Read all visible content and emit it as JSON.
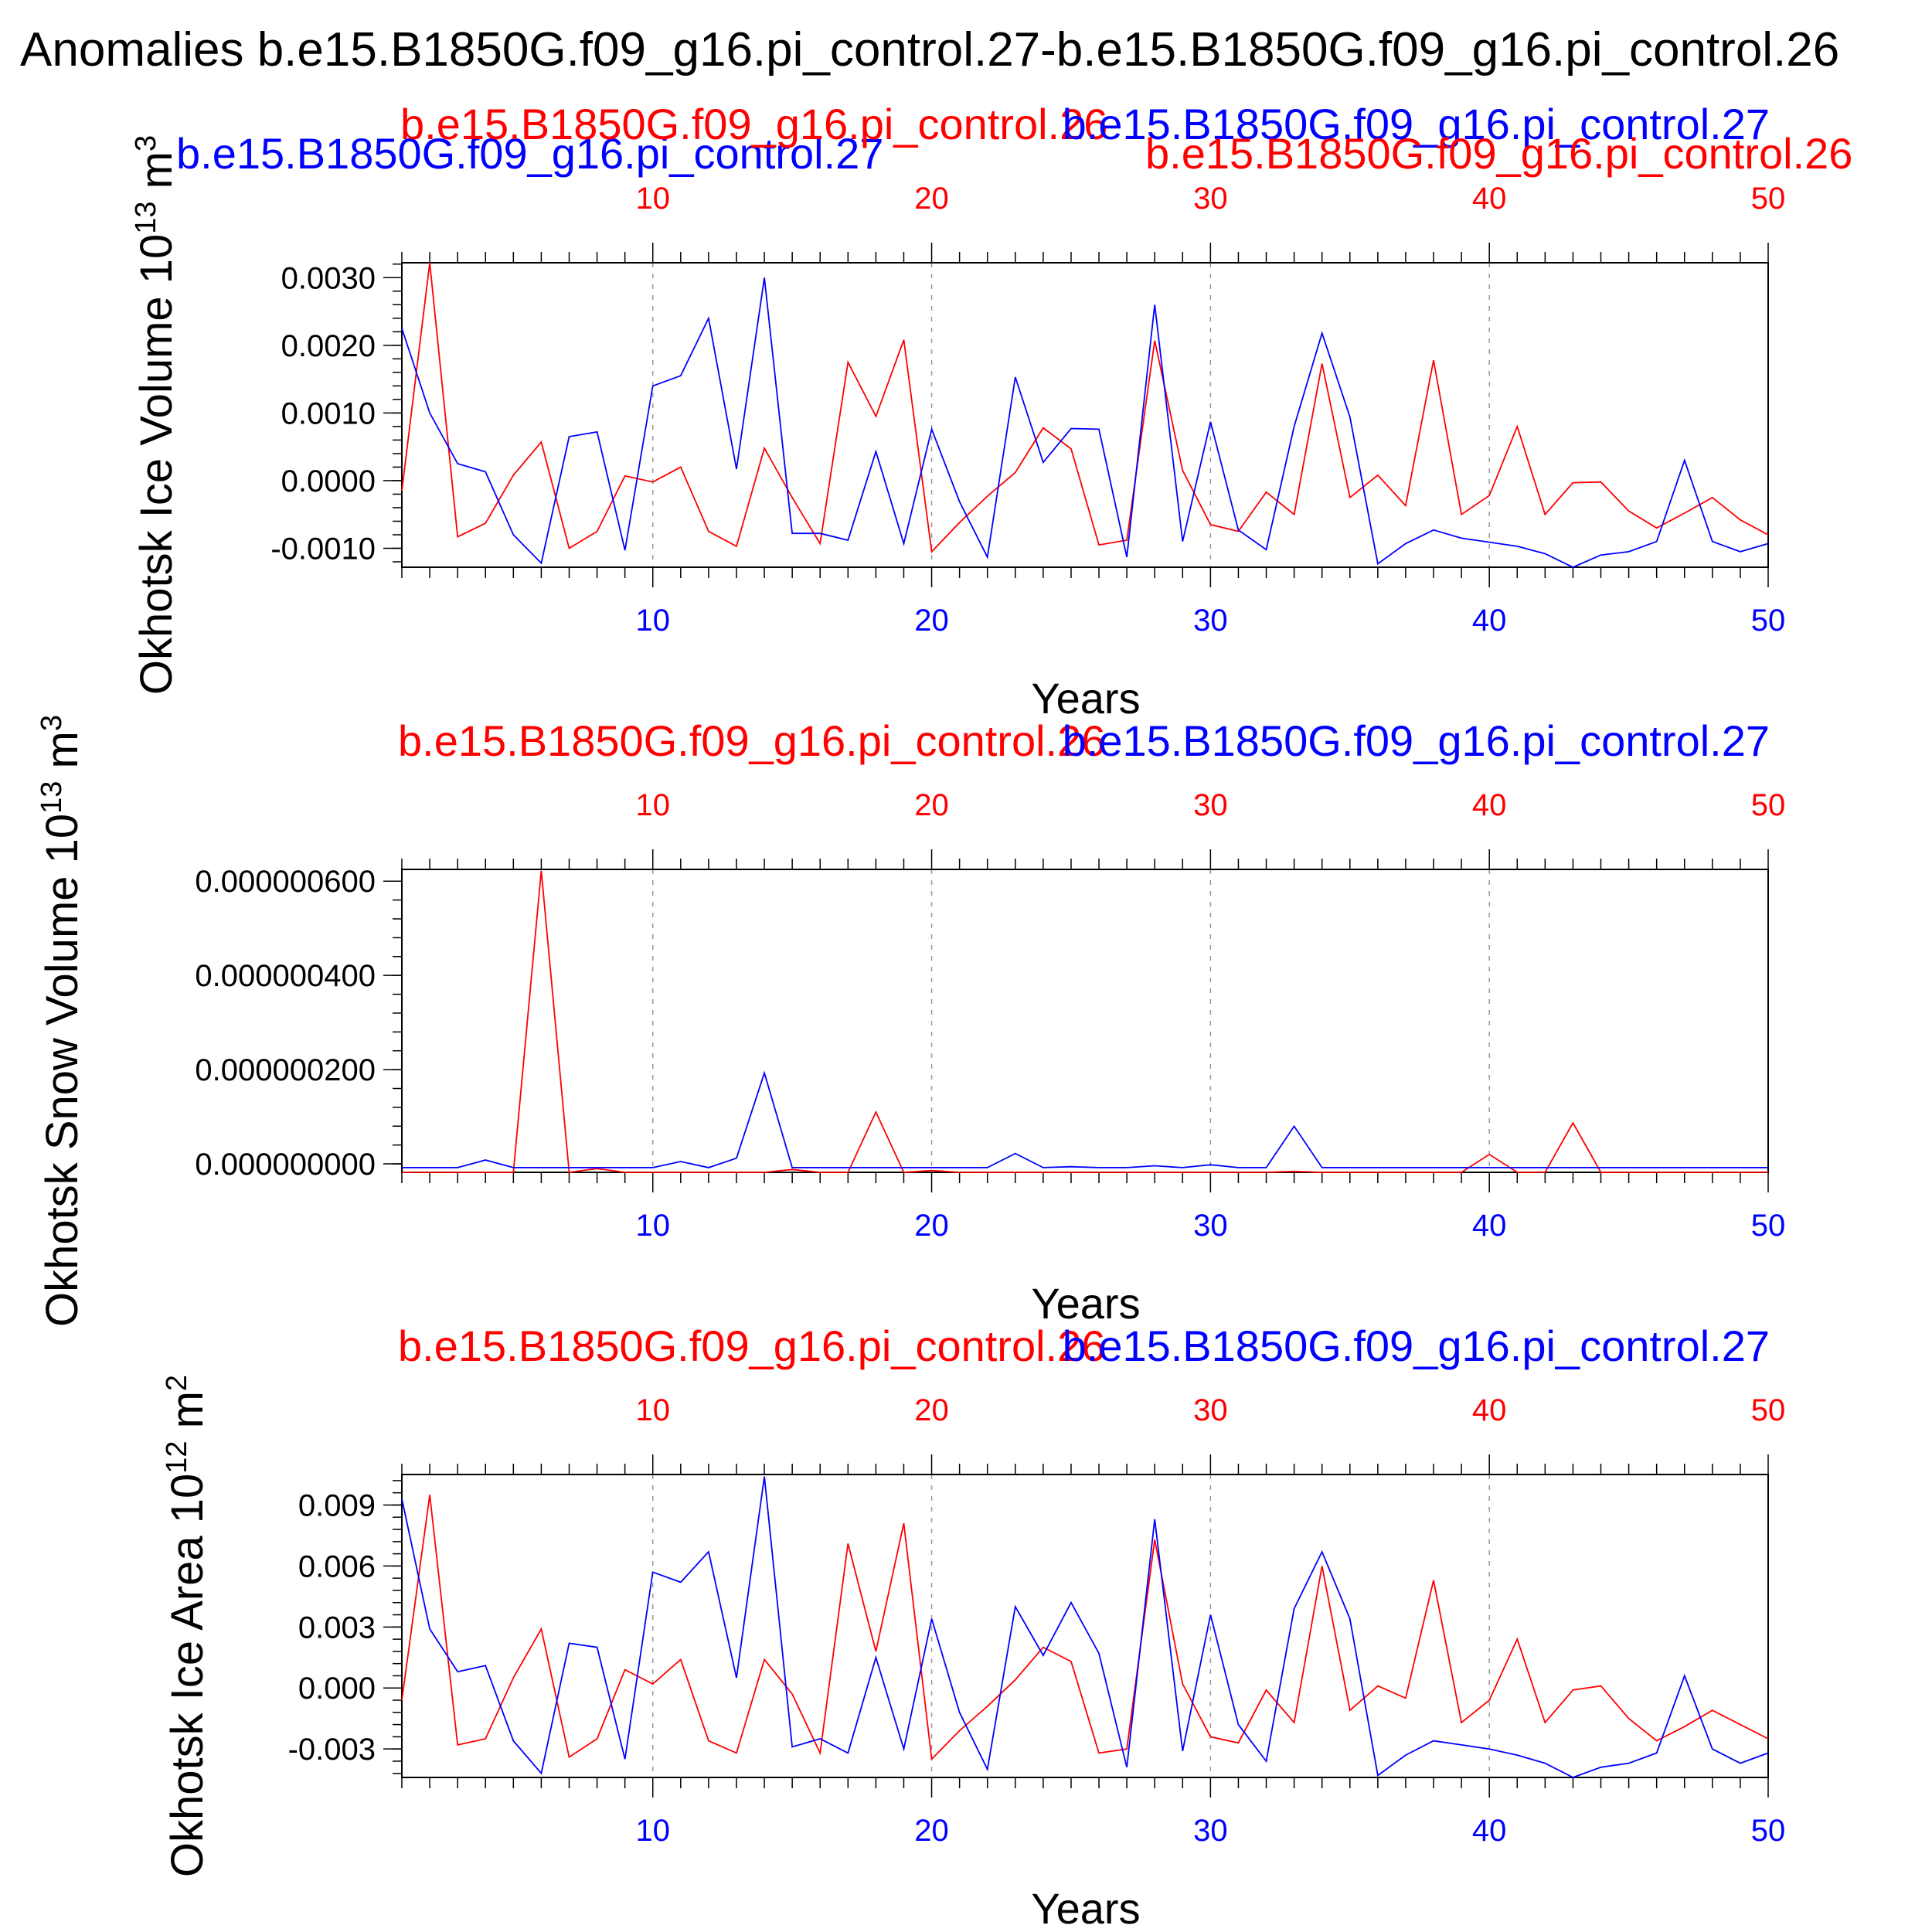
{
  "figure": {
    "title": "Anomalies b.e15.B1850G.f09_g16.pi_control.27-b.e15.B1850G.f09_g16.pi_control.26",
    "colors": {
      "blue": "#0000ff",
      "red": "#ff0000",
      "black": "#000000",
      "grid": "#999999"
    }
  },
  "chart_data": [
    {
      "type": "line",
      "ylabel": "Okhotsk Ice Volume 10",
      "ylabel_exp": "13",
      "ylabel_unit": " m",
      "ylabel_unit_exp": "3",
      "xlabel": "Years",
      "xlim": [
        1,
        50
      ],
      "ylim": [
        -0.00128,
        0.00322
      ],
      "yticks": [
        -0.001,
        0.0,
        0.001,
        0.002,
        0.003
      ],
      "ytick_labels": [
        "-0.0010",
        "0.0000",
        "0.0010",
        "0.0020",
        "0.0030"
      ],
      "xticks": [
        10,
        20,
        30,
        40,
        50
      ],
      "xtick_labels": [
        "10",
        "20",
        "30",
        "40",
        "50"
      ],
      "grid_x": true,
      "series": [
        {
          "name": "b.e15.B1850G.f09_g16.pi_control.27",
          "color": "blue",
          "x": [
            1,
            2,
            3,
            4,
            5,
            6,
            7,
            8,
            9,
            10,
            11,
            12,
            13,
            14,
            15,
            16,
            17,
            18,
            19,
            20,
            21,
            22,
            23,
            24,
            25,
            26,
            27,
            28,
            29,
            30,
            31,
            32,
            33,
            34,
            35,
            36,
            37,
            38,
            39,
            40,
            41,
            42,
            43,
            44,
            45,
            46,
            47,
            48,
            49,
            50
          ],
          "values": [
            0.00225,
            0.001,
            0.00025,
            0.00013,
            -0.0008,
            -0.00122,
            0.00065,
            0.00072,
            -0.00103,
            0.0014,
            0.00155,
            0.0024,
            0.00017,
            0.003,
            -0.00078,
            -0.00078,
            -0.00088,
            0.00043,
            -0.00093,
            0.00076,
            -0.00031,
            -0.00113,
            0.00153,
            0.00027,
            0.00077,
            0.00076,
            -0.00113,
            0.0026,
            -0.0009,
            0.00087,
            -0.00073,
            -0.00102,
            0.0008,
            0.00218,
            0.00094,
            -0.00123,
            -0.00093,
            -0.00073,
            -0.00085,
            -0.00091,
            -0.00097,
            -0.00108,
            -0.00128,
            -0.0011,
            -0.00105,
            -0.0009,
            0.0003,
            -0.0009,
            -0.00105,
            -0.00093
          ]
        },
        {
          "name": "b.e15.B1850G.f09_g16.pi_control.26",
          "color": "red",
          "x": [
            1,
            2,
            3,
            4,
            5,
            6,
            7,
            8,
            9,
            10,
            11,
            12,
            13,
            14,
            15,
            16,
            17,
            18,
            19,
            20,
            21,
            22,
            23,
            24,
            25,
            26,
            27,
            28,
            29,
            30,
            31,
            32,
            33,
            34,
            35,
            36,
            37,
            38,
            39,
            40,
            41,
            42,
            43,
            44,
            45,
            46,
            47,
            48,
            49,
            50
          ],
          "values": [
            -0.00015,
            0.00322,
            -0.00083,
            -0.00063,
            8e-05,
            0.00057,
            -0.001,
            -0.00075,
            7e-05,
            -2e-05,
            0.0002,
            -0.00075,
            -0.00097,
            0.00048,
            -0.00025,
            -0.00093,
            0.00175,
            0.00095,
            0.00208,
            -0.00105,
            -0.00062,
            -0.00023,
            0.00012,
            0.00078,
            0.00047,
            -0.00095,
            -0.00088,
            0.00207,
            0.00015,
            -0.00065,
            -0.00075,
            -0.00017,
            -0.0005,
            0.00173,
            -0.00025,
            8e-05,
            -0.00037,
            0.00178,
            -0.0005,
            -0.00022,
            0.0008,
            -0.0005,
            -3e-05,
            -2e-05,
            -0.00045,
            -0.0007,
            -0.00048,
            -0.00025,
            -0.00058,
            -0.0008
          ]
        }
      ]
    },
    {
      "type": "line",
      "ylabel": "Okhotsk Snow Volume 10",
      "ylabel_exp": "13",
      "ylabel_unit": " m",
      "ylabel_unit_exp": "3",
      "xlabel": "Years",
      "xlim": [
        1,
        50
      ],
      "ylim": [
        -1.8e-08,
        6.25e-07
      ],
      "yticks": [
        0.0,
        2e-07,
        4e-07,
        6e-07
      ],
      "ytick_labels": [
        "0.000000000",
        "0.000000200",
        "0.000000400",
        "0.000000600"
      ],
      "xticks": [
        10,
        20,
        30,
        40,
        50
      ],
      "xtick_labels": [
        "10",
        "20",
        "30",
        "40",
        "50"
      ],
      "grid_x": true,
      "series": [
        {
          "name": "b.e15.B1850G.f09_g16.pi_control.27",
          "color": "blue",
          "x": [
            1,
            2,
            3,
            4,
            5,
            6,
            7,
            8,
            9,
            10,
            11,
            12,
            13,
            14,
            15,
            16,
            17,
            18,
            19,
            20,
            21,
            22,
            23,
            24,
            25,
            26,
            27,
            28,
            29,
            30,
            31,
            32,
            33,
            34,
            35,
            36,
            37,
            38,
            39,
            40,
            41,
            42,
            43,
            44,
            45,
            46,
            47,
            48,
            49,
            50
          ],
          "values": [
            -8e-09,
            -8e-09,
            -8e-09,
            8e-09,
            -8e-09,
            -8e-09,
            -8e-09,
            -8e-09,
            -8e-09,
            -8e-09,
            5e-09,
            -8e-09,
            1.2e-08,
            1.93e-07,
            -8e-09,
            -8e-09,
            -8e-09,
            -8e-09,
            -8e-09,
            -8e-09,
            -8e-09,
            -8e-09,
            2.2e-08,
            -8e-09,
            -6e-09,
            -8e-09,
            -8e-09,
            -4e-09,
            -8e-09,
            -2e-09,
            -8e-09,
            -8e-09,
            8e-08,
            -8e-09,
            -8e-09,
            -8e-09,
            -8e-09,
            -8e-09,
            -8e-09,
            -8e-09,
            -8e-09,
            -8e-09,
            -8e-09,
            -8e-09,
            -8e-09,
            -8e-09,
            -8e-09,
            -8e-09,
            -8e-09,
            -8e-09
          ]
        },
        {
          "name": "b.e15.B1850G.f09_g16.pi_control.26",
          "color": "red",
          "x": [
            1,
            2,
            3,
            4,
            5,
            6,
            7,
            8,
            9,
            10,
            11,
            12,
            13,
            14,
            15,
            16,
            17,
            18,
            19,
            20,
            21,
            22,
            23,
            24,
            25,
            26,
            27,
            28,
            29,
            30,
            31,
            32,
            33,
            34,
            35,
            36,
            37,
            38,
            39,
            40,
            41,
            42,
            43,
            44,
            45,
            46,
            47,
            48,
            49,
            50
          ],
          "values": [
            -1.8e-08,
            -1.8e-08,
            -1.8e-08,
            -1.8e-08,
            -1.8e-08,
            6.22e-07,
            -1.8e-08,
            -1e-08,
            -1.8e-08,
            -1.8e-08,
            -1.8e-08,
            -1.8e-08,
            -1.8e-08,
            -1.8e-08,
            -1.2e-08,
            -1.8e-08,
            -1.8e-08,
            1.1e-07,
            -1.8e-08,
            -1.4e-08,
            -1.8e-08,
            -1.8e-08,
            -1.8e-08,
            -1.8e-08,
            -1.8e-08,
            -1.8e-08,
            -1.8e-08,
            -1.8e-08,
            -1.8e-08,
            -1.8e-08,
            -1.8e-08,
            -1.8e-08,
            -1.6e-08,
            -1.8e-08,
            -1.8e-08,
            -1.8e-08,
            -1.8e-08,
            -1.8e-08,
            -1.8e-08,
            2e-08,
            -1.8e-08,
            -1.8e-08,
            8.7e-08,
            -1.8e-08,
            -1.8e-08,
            -1.8e-08,
            -1.8e-08,
            -1.8e-08,
            -1.8e-08,
            -1.8e-08
          ]
        }
      ]
    },
    {
      "type": "line",
      "ylabel": "Okhotsk Ice Area 10",
      "ylabel_exp": "12",
      "ylabel_unit": " m",
      "ylabel_unit_exp": "2",
      "xlabel": "Years",
      "xlim": [
        1,
        50
      ],
      "ylim": [
        -0.0044,
        0.0105
      ],
      "yticks": [
        -0.003,
        0.0,
        0.003,
        0.006,
        0.009
      ],
      "ytick_labels": [
        "-0.003",
        "0.000",
        "0.003",
        "0.006",
        "0.009"
      ],
      "xticks": [
        10,
        20,
        30,
        40,
        50
      ],
      "xtick_labels": [
        "10",
        "20",
        "30",
        "40",
        "50"
      ],
      "grid_x": true,
      "series": [
        {
          "name": "b.e15.B1850G.f09_g16.pi_control.27",
          "color": "blue",
          "x": [
            1,
            2,
            3,
            4,
            5,
            6,
            7,
            8,
            9,
            10,
            11,
            12,
            13,
            14,
            15,
            16,
            17,
            18,
            19,
            20,
            21,
            22,
            23,
            24,
            25,
            26,
            27,
            28,
            29,
            30,
            31,
            32,
            33,
            34,
            35,
            36,
            37,
            38,
            39,
            40,
            41,
            42,
            43,
            44,
            45,
            46,
            47,
            48,
            49,
            50
          ],
          "values": [
            0.0093,
            0.0029,
            0.0008,
            0.0011,
            -0.0026,
            -0.0042,
            0.0022,
            0.002,
            -0.0035,
            0.0057,
            0.0052,
            0.0067,
            0.0005,
            0.0104,
            -0.0029,
            -0.0025,
            -0.0032,
            0.0015,
            -0.003,
            0.0034,
            -0.0012,
            -0.004,
            0.004,
            0.0016,
            0.0042,
            0.0017,
            -0.0039,
            0.0083,
            -0.0031,
            0.0036,
            -0.0018,
            -0.0036,
            0.0039,
            0.0067,
            0.0034,
            -0.0043,
            -0.0033,
            -0.0026,
            -0.0028,
            -0.003,
            -0.0033,
            -0.0037,
            -0.0044,
            -0.0039,
            -0.0037,
            -0.0032,
            0.0006,
            -0.003,
            -0.0037,
            -0.0032
          ]
        },
        {
          "name": "b.e15.B1850G.f09_g16.pi_control.26",
          "color": "red",
          "x": [
            1,
            2,
            3,
            4,
            5,
            6,
            7,
            8,
            9,
            10,
            11,
            12,
            13,
            14,
            15,
            16,
            17,
            18,
            19,
            20,
            21,
            22,
            23,
            24,
            25,
            26,
            27,
            28,
            29,
            30,
            31,
            32,
            33,
            34,
            35,
            36,
            37,
            38,
            39,
            40,
            41,
            42,
            43,
            44,
            45,
            46,
            47,
            48,
            49,
            50
          ],
          "values": [
            -0.0006,
            0.0095,
            -0.0028,
            -0.0025,
            0.0005,
            0.0029,
            -0.0034,
            -0.0025,
            0.0009,
            0.0002,
            0.0014,
            -0.0026,
            -0.0032,
            0.0014,
            -0.0003,
            -0.0032,
            0.0071,
            0.0018,
            0.0081,
            -0.0035,
            -0.0021,
            -0.0009,
            0.0004,
            0.002,
            0.0013,
            -0.0032,
            -0.003,
            0.0073,
            0.0002,
            -0.0024,
            -0.0027,
            -0.0001,
            -0.0017,
            0.006,
            -0.0011,
            0.0001,
            -0.0005,
            0.0053,
            -0.0017,
            -0.0006,
            0.0024,
            -0.0017,
            -0.0001,
            0.0001,
            -0.0015,
            -0.0026,
            -0.0019,
            -0.0011,
            -0.0018,
            -0.0025
          ]
        }
      ]
    }
  ]
}
